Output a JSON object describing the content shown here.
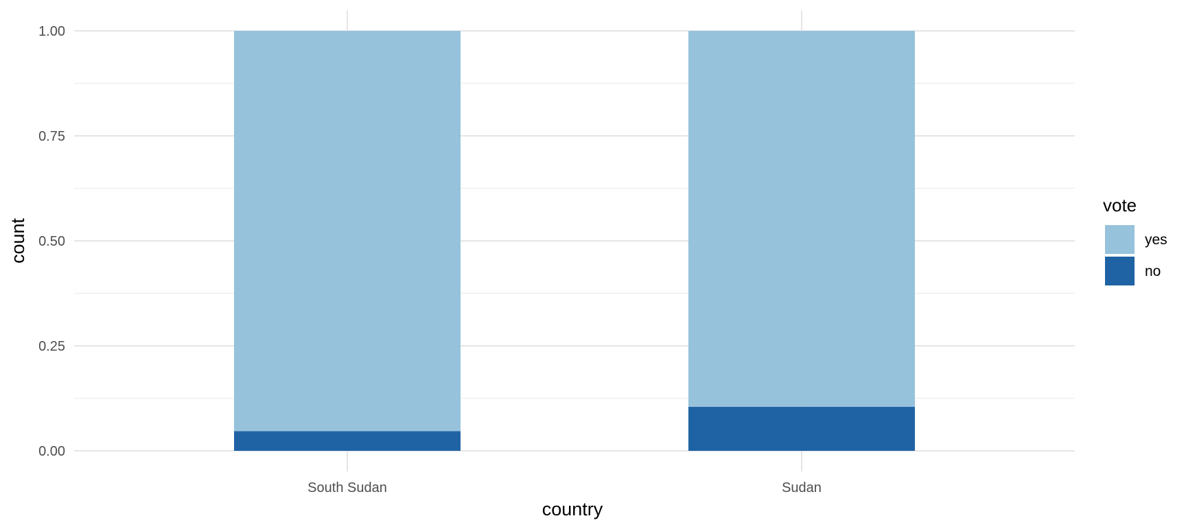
{
  "chart_data": {
    "type": "bar",
    "stacked": true,
    "categories": [
      "South Sudan",
      "Sudan"
    ],
    "series": [
      {
        "name": "yes",
        "values": [
          0.953,
          0.895
        ],
        "color": "#96c2dc"
      },
      {
        "name": "no",
        "values": [
          0.047,
          0.105
        ],
        "color": "#1f63a4"
      }
    ],
    "xlabel": "country",
    "ylabel": "count",
    "ylim": [
      0,
      1
    ],
    "yticks": [
      "0.00",
      "0.25",
      "0.50",
      "0.75",
      "1.00"
    ],
    "grid": true,
    "legend": {
      "title": "vote",
      "position": "right",
      "entries": [
        "yes",
        "no"
      ]
    }
  }
}
